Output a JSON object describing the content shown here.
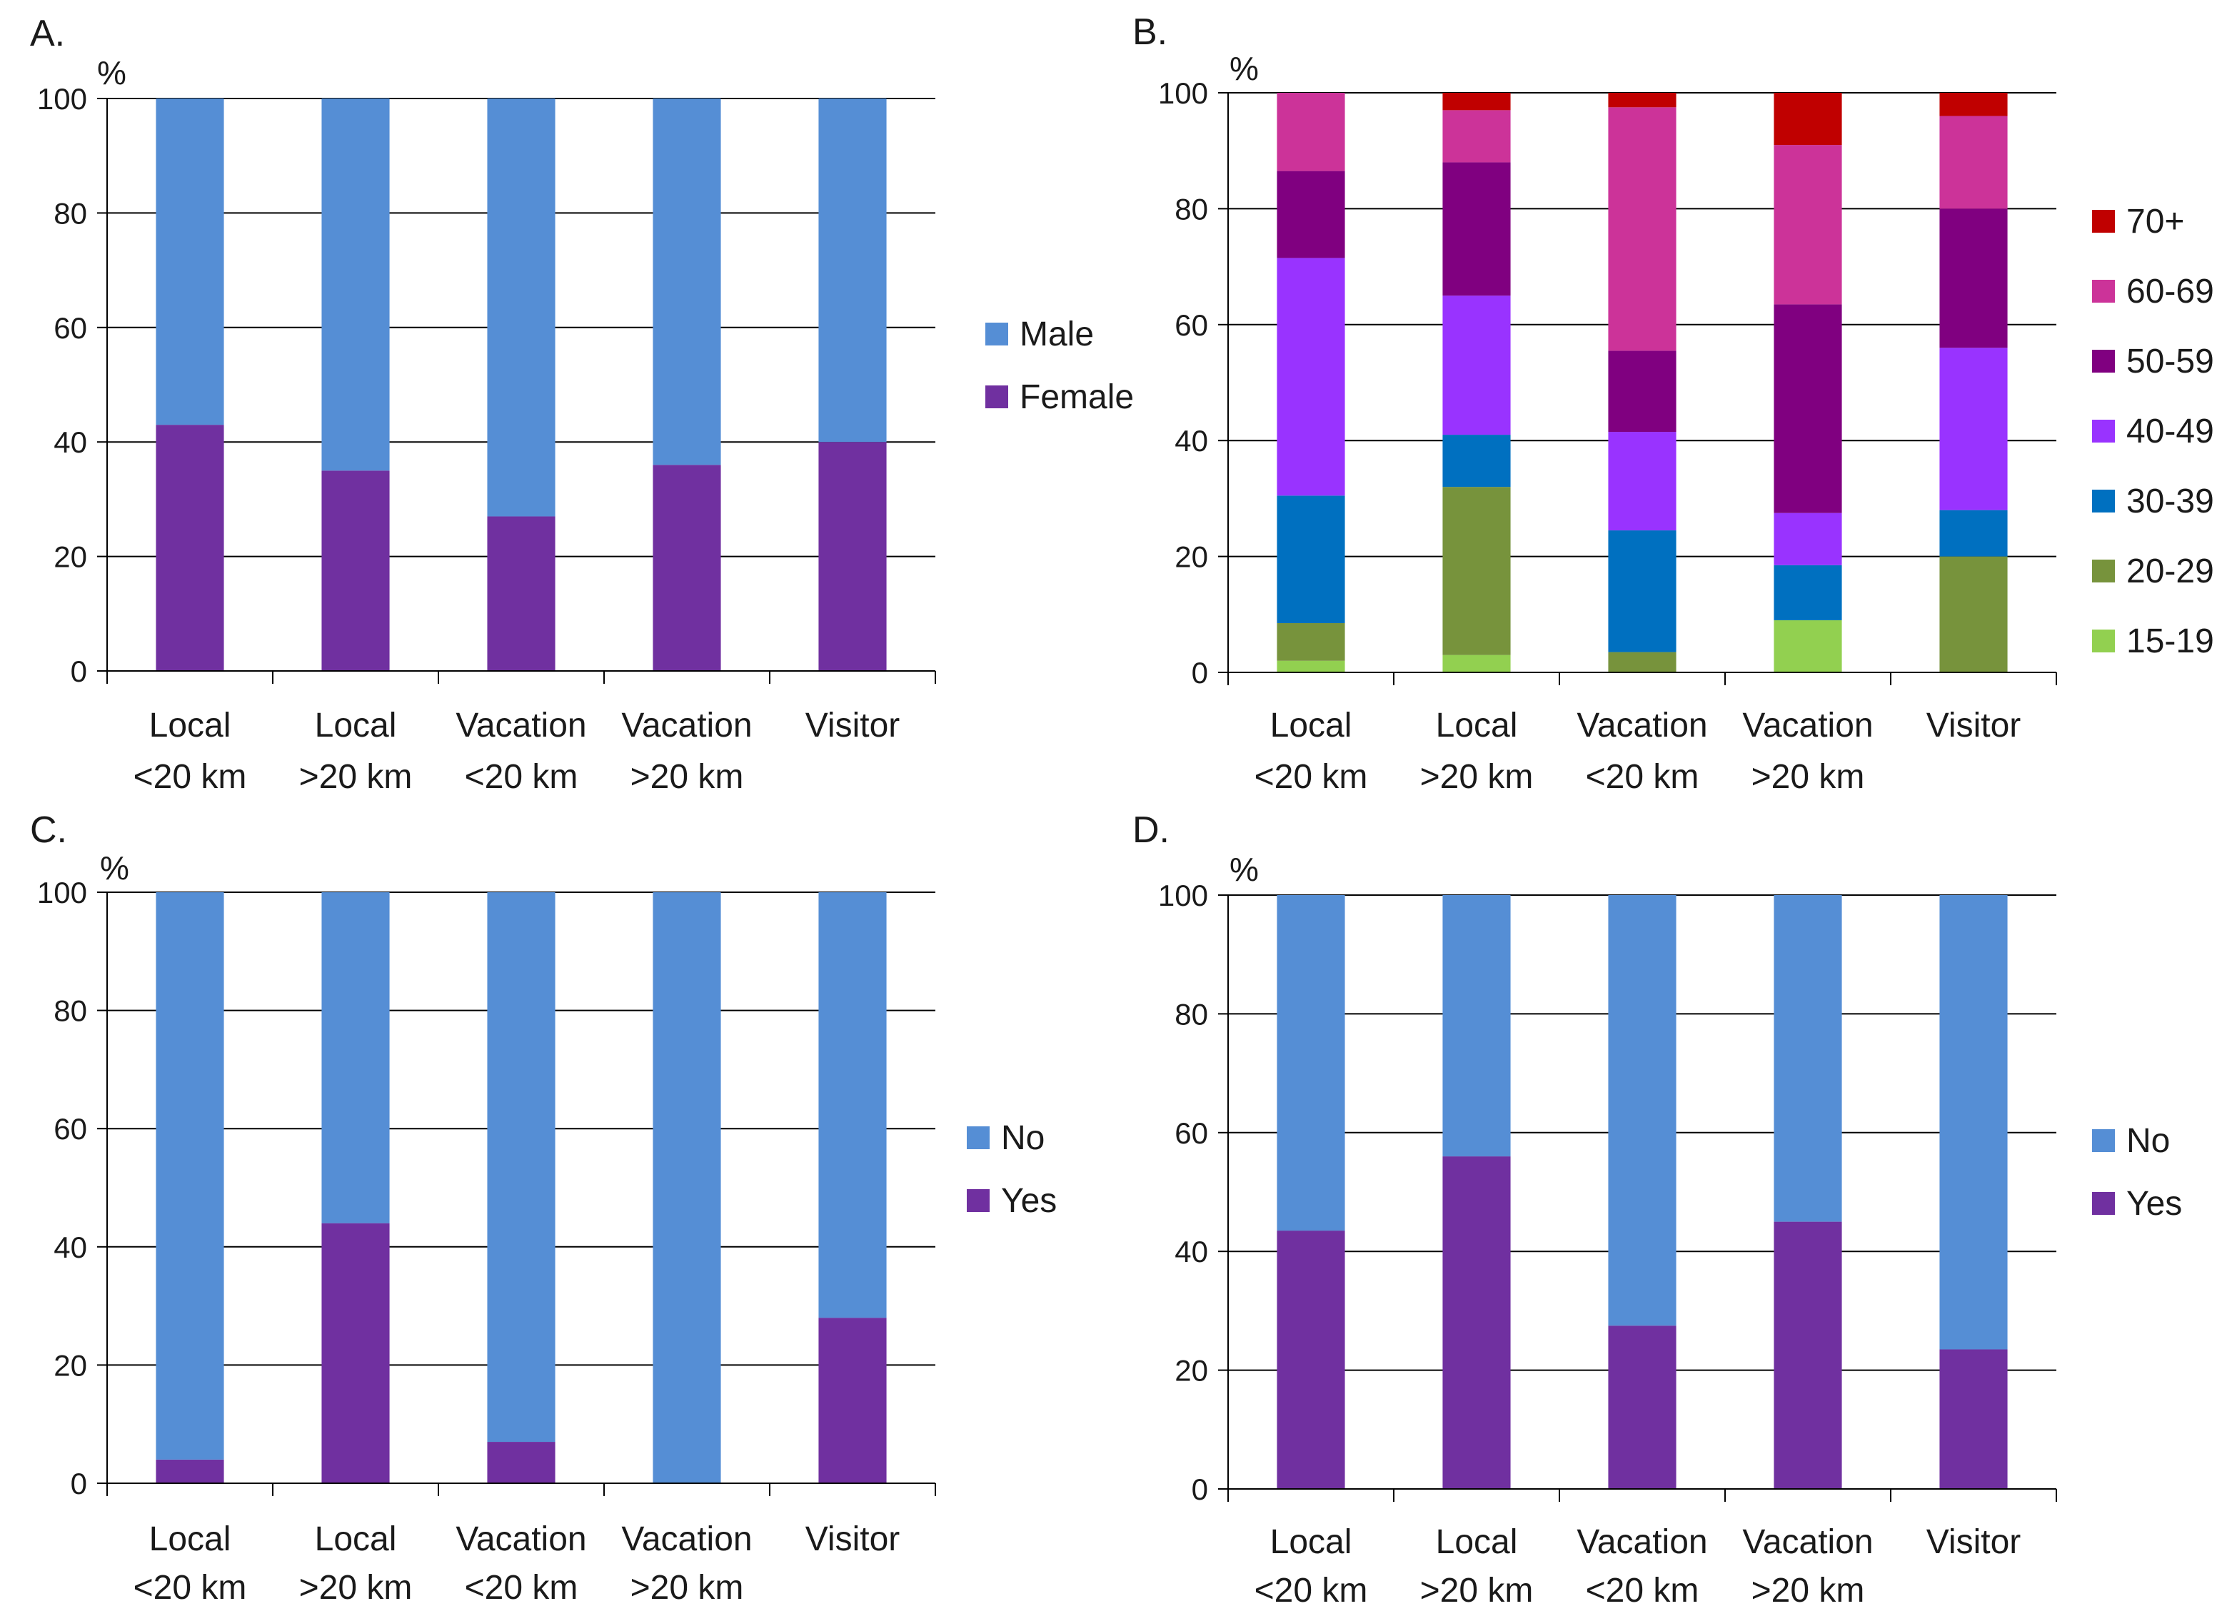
{
  "chart_data": [
    {
      "panel_label": "A.",
      "type": "bar",
      "stacked": true,
      "ylabel": "%",
      "ylim": [
        0,
        100
      ],
      "yticks": [
        0,
        20,
        40,
        60,
        80,
        100
      ],
      "categories": [
        [
          "Local",
          "<20 km"
        ],
        [
          "Local",
          ">20 km"
        ],
        [
          "Vacation",
          "<20 km"
        ],
        [
          "Vacation",
          ">20 km"
        ],
        [
          "Visitor",
          ""
        ]
      ],
      "series": [
        {
          "name": "Female",
          "color": "#7030a0",
          "values": [
            43,
            35,
            27,
            36,
            40
          ]
        },
        {
          "name": "Male",
          "color": "#558ed5",
          "values": [
            57,
            65,
            73,
            64,
            60
          ]
        }
      ],
      "legend": [
        "Male",
        "Female"
      ],
      "grid": true
    },
    {
      "panel_label": "B.",
      "type": "bar",
      "stacked": true,
      "ylabel": "%",
      "ylim": [
        0,
        100
      ],
      "yticks": [
        0,
        20,
        40,
        60,
        80,
        100
      ],
      "categories": [
        [
          "Local",
          "<20 km"
        ],
        [
          "Local",
          ">20 km"
        ],
        [
          "Vacation",
          "<20 km"
        ],
        [
          "Vacation",
          ">20 km"
        ],
        [
          "Visitor",
          ""
        ]
      ],
      "series": [
        {
          "name": "15-19",
          "color": "#92d050",
          "values": [
            2,
            3,
            0,
            9,
            0
          ]
        },
        {
          "name": "20-29",
          "color": "#77933c",
          "values": [
            6.5,
            29,
            3.5,
            0,
            20
          ]
        },
        {
          "name": "30-39",
          "color": "#0070c0",
          "values": [
            22,
            9,
            21,
            9.5,
            8
          ]
        },
        {
          "name": "40-49",
          "color": "#9933ff",
          "values": [
            41,
            24,
            17,
            9,
            28
          ]
        },
        {
          "name": "50-59",
          "color": "#800080",
          "values": [
            15,
            23,
            14,
            36,
            24
          ]
        },
        {
          "name": "60-69",
          "color": "#cc3399",
          "values": [
            13.5,
            9,
            42,
            27.5,
            16
          ]
        },
        {
          "name": "70+",
          "color": "#c00000",
          "values": [
            0,
            3,
            2.5,
            9,
            4
          ]
        }
      ],
      "legend": [
        "70+",
        "60-69",
        "50-59",
        "40-49",
        "30-39",
        "20-29",
        "15-19"
      ],
      "grid": true
    },
    {
      "panel_label": "C.",
      "type": "bar",
      "stacked": true,
      "ylabel": "%",
      "ylim": [
        0,
        100
      ],
      "yticks": [
        0,
        20,
        40,
        60,
        80,
        100
      ],
      "categories": [
        [
          "Local",
          "<20 km"
        ],
        [
          "Local",
          ">20 km"
        ],
        [
          "Vacation",
          "<20 km"
        ],
        [
          "Vacation",
          ">20 km"
        ],
        [
          "Visitor",
          ""
        ]
      ],
      "series": [
        {
          "name": "Yes",
          "color": "#7030a0",
          "values": [
            4,
            44,
            7,
            0,
            28
          ]
        },
        {
          "name": "No",
          "color": "#558ed5",
          "values": [
            96,
            56,
            93,
            100,
            72
          ]
        }
      ],
      "legend": [
        "No",
        "Yes"
      ],
      "grid": true
    },
    {
      "panel_label": "D.",
      "type": "bar",
      "stacked": true,
      "ylabel": "%",
      "ylim": [
        0,
        100
      ],
      "yticks": [
        0,
        20,
        40,
        60,
        80,
        100
      ],
      "categories": [
        [
          "Local",
          "<20 km"
        ],
        [
          "Local",
          ">20 km"
        ],
        [
          "Vacation",
          "<20 km"
        ],
        [
          "Vacation",
          ">20 km"
        ],
        [
          "Visitor",
          ""
        ]
      ],
      "series": [
        {
          "name": "Yes",
          "color": "#7030a0",
          "values": [
            43.5,
            56,
            27.5,
            45,
            23.5
          ]
        },
        {
          "name": "No",
          "color": "#558ed5",
          "values": [
            56.5,
            44,
            72.5,
            55,
            76.5
          ]
        }
      ],
      "legend": [
        "No",
        "Yes"
      ],
      "grid": true
    }
  ]
}
